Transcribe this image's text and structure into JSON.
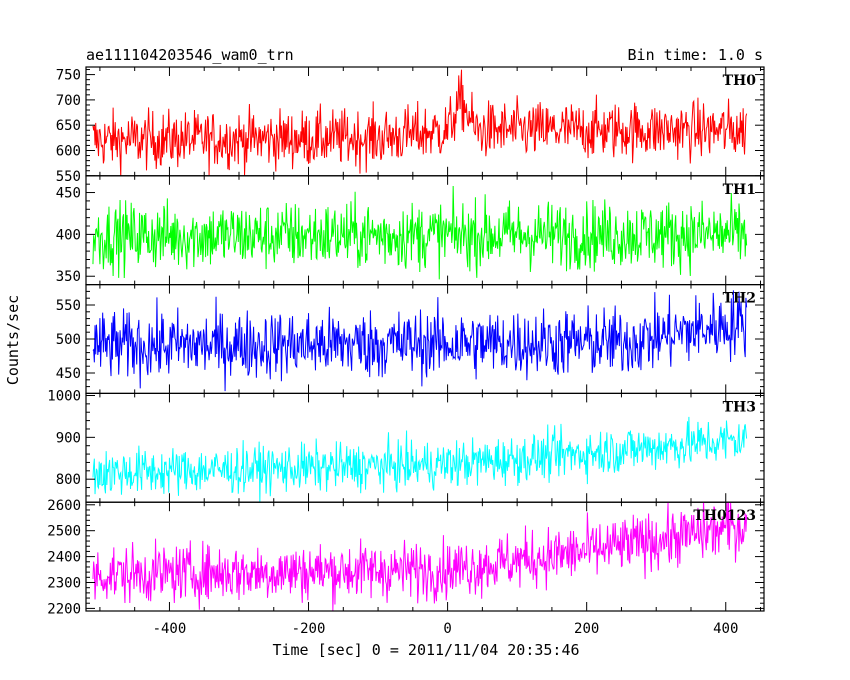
{
  "header": {
    "title": "ae111104203546_wam0_trn",
    "bin_time": "Bin time: 1.0 s"
  },
  "axes": {
    "ylabel": "Counts/sec",
    "xlabel": "Time [sec] 0 = 2011/11/04 20:35:46"
  },
  "chart_data": [
    {
      "type": "line",
      "name": "TH0",
      "color": "#ff0000",
      "x_range": [
        -510,
        430
      ],
      "xlim": [
        -520,
        455
      ],
      "ylim": [
        550,
        765
      ],
      "yticks": [
        550,
        600,
        650,
        700,
        750
      ],
      "baseline": [
        [
          -510,
          620
        ],
        [
          -100,
          625
        ],
        [
          0,
          640
        ],
        [
          20,
          700
        ],
        [
          40,
          640
        ],
        [
          430,
          640
        ]
      ],
      "noise": 28
    },
    {
      "type": "line",
      "name": "TH1",
      "color": "#00ff00",
      "x_range": [
        -510,
        430
      ],
      "xlim": [
        -520,
        455
      ],
      "ylim": [
        340,
        470
      ],
      "yticks": [
        350,
        400,
        450
      ],
      "baseline": [
        [
          -510,
          398
        ],
        [
          430,
          400
        ]
      ],
      "noise": 20
    },
    {
      "type": "line",
      "name": "TH2",
      "color": "#0000ff",
      "x_range": [
        -510,
        430
      ],
      "xlim": [
        -520,
        455
      ],
      "ylim": [
        420,
        580
      ],
      "yticks": [
        450,
        500,
        550
      ],
      "baseline": [
        [
          -510,
          490
        ],
        [
          250,
          495
        ],
        [
          430,
          525
        ]
      ],
      "noise": 25
    },
    {
      "type": "line",
      "name": "TH3",
      "color": "#00ffff",
      "x_range": [
        -510,
        430
      ],
      "xlim": [
        -520,
        455
      ],
      "ylim": [
        745,
        1005
      ],
      "yticks": [
        800,
        900,
        1000
      ],
      "baseline": [
        [
          -510,
          815
        ],
        [
          0,
          835
        ],
        [
          430,
          895
        ]
      ],
      "noise": 28
    },
    {
      "type": "line",
      "name": "TH0123",
      "color": "#ff00ff",
      "x_range": [
        -510,
        430
      ],
      "xlim": [
        -520,
        455
      ],
      "ylim": [
        2190,
        2610
      ],
      "yticks": [
        2200,
        2300,
        2400,
        2500,
        2600
      ],
      "baseline": [
        [
          -510,
          2330
        ],
        [
          0,
          2350
        ],
        [
          200,
          2420
        ],
        [
          430,
          2520
        ]
      ],
      "noise": 55
    }
  ],
  "xticks": [
    -400,
    -200,
    0,
    200,
    400
  ]
}
